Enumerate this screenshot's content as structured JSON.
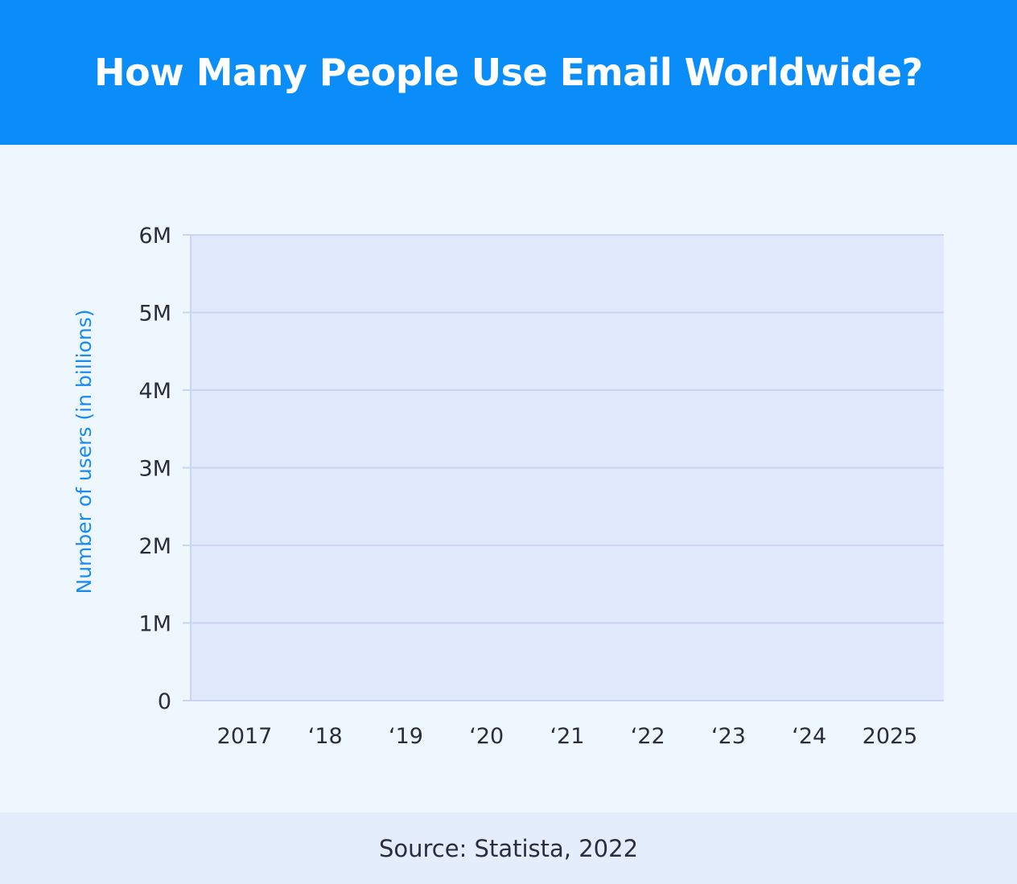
{
  "header": {
    "title": "How Many People Use Email Worldwide?"
  },
  "footer": {
    "source": "Source: Statista, 2022"
  },
  "colors": {
    "header_bg": "#0a8df8",
    "page_bg": "#eef6fe",
    "plot_bg": "#e0e9fb",
    "grid": "#c9d5f3",
    "axis_label": "#1a8cf0",
    "text": "#2b2d3c"
  },
  "chart_data": {
    "type": "bar",
    "title": "How Many People Use Email Worldwide?",
    "xlabel": "",
    "ylabel": "Number of users (in billions)",
    "categories": [
      "2017",
      "‘18",
      "‘19",
      "‘20",
      "‘21",
      "‘22",
      "‘23",
      "‘24",
      "2025"
    ],
    "y_ticks": [
      "0",
      "1M",
      "2M",
      "3M",
      "4M",
      "5M",
      "6M"
    ],
    "ylim": [
      0,
      6
    ],
    "grid": true,
    "series": []
  }
}
